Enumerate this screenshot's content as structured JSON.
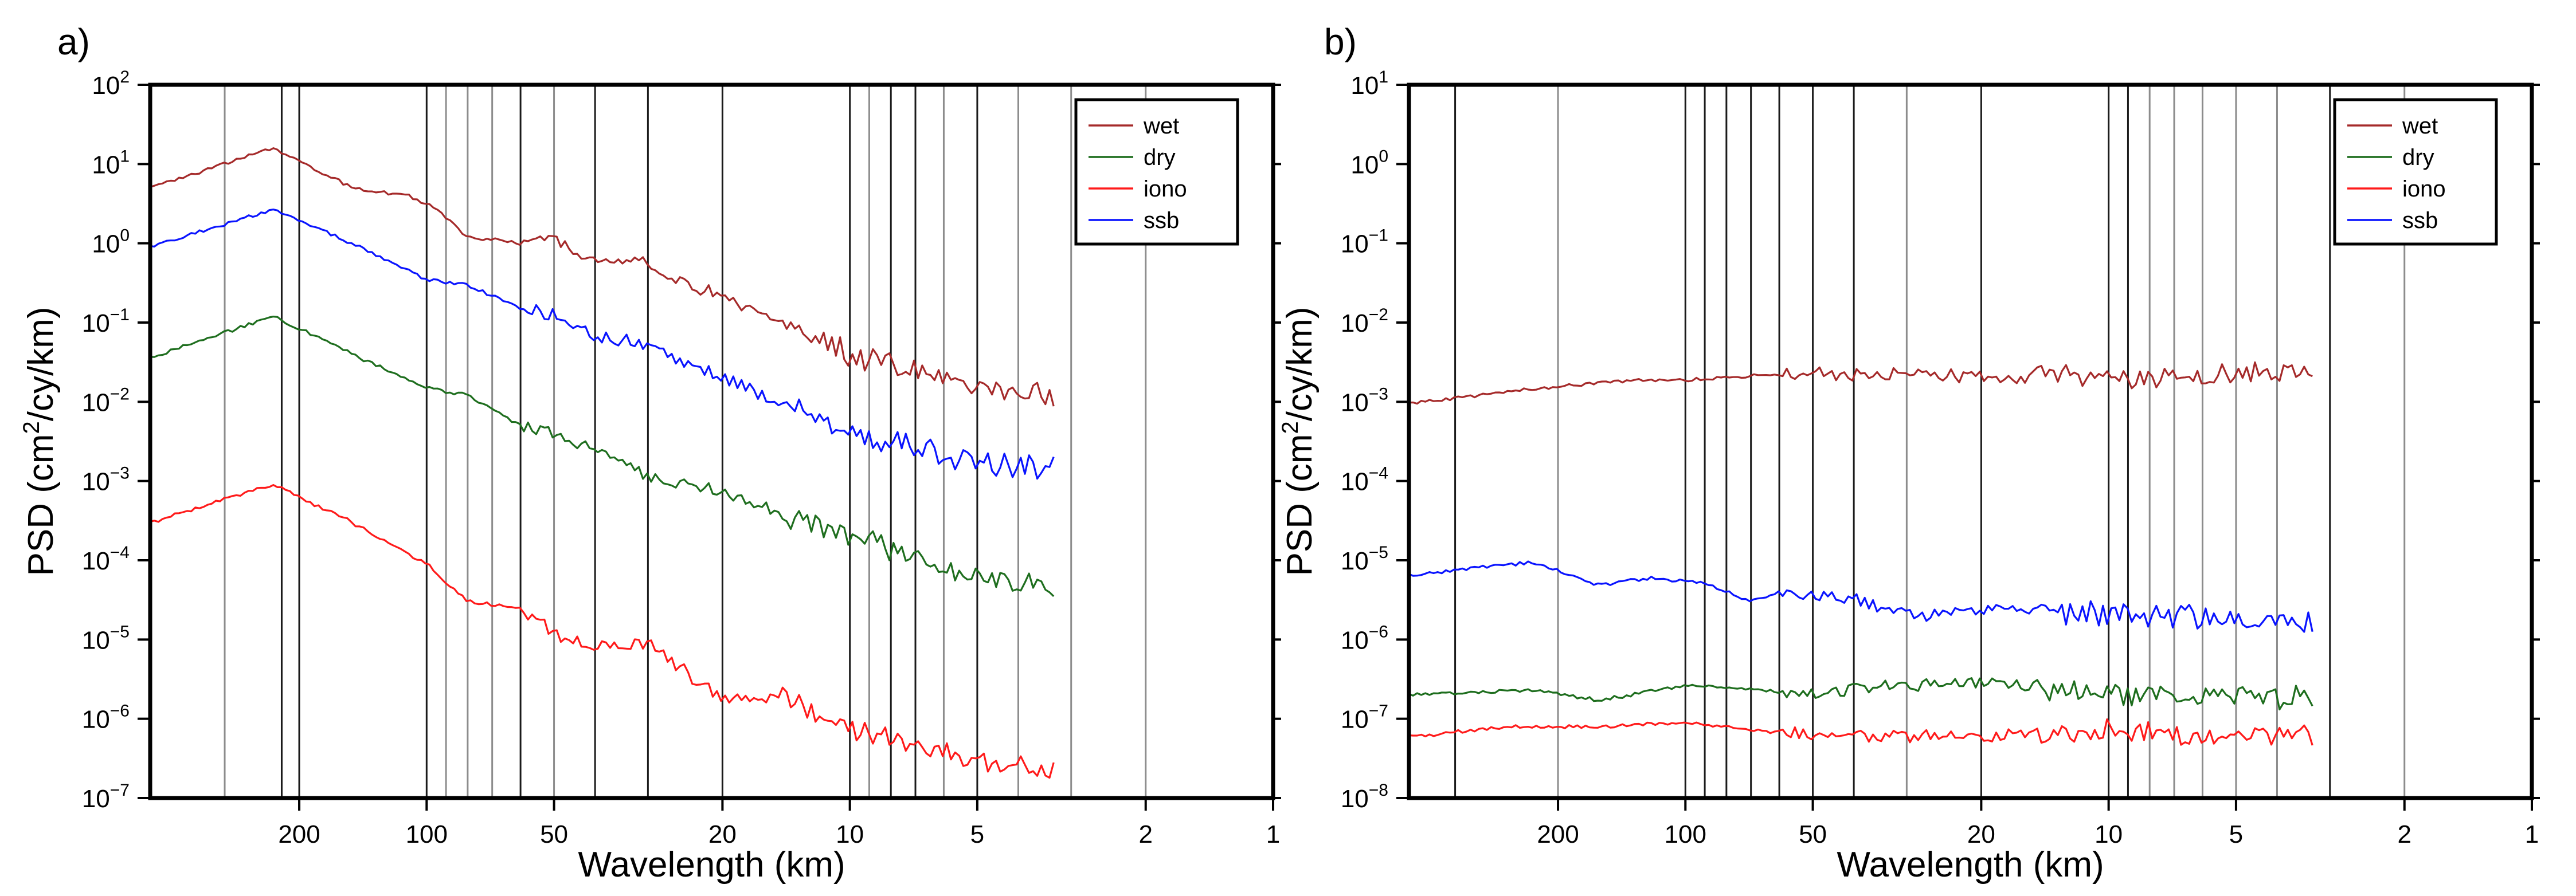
{
  "chart_data": [
    {
      "type": "line",
      "panel_label": "a)",
      "title": "",
      "xlabel": "Wavelength (km)",
      "ylabel": {
        "prefix": "PSD (cm",
        "sup": "2",
        "suffix": "/cy/km)"
      },
      "x_scale": "log-reversed",
      "xlim": [
        450,
        1
      ],
      "ylim": [
        1e-07,
        100
      ],
      "x_ticks": [
        {
          "value": 200,
          "label": "200"
        },
        {
          "value": 100,
          "label": "100"
        },
        {
          "value": 50,
          "label": "50"
        },
        {
          "value": 20,
          "label": "20"
        },
        {
          "value": 10,
          "label": "10"
        },
        {
          "value": 5,
          "label": "5"
        },
        {
          "value": 2,
          "label": "2"
        },
        {
          "value": 1,
          "label": "1"
        }
      ],
      "y_ticks": [
        {
          "value": 100,
          "base": "10",
          "exp": "2"
        },
        {
          "value": 10,
          "base": "10",
          "exp": "1"
        },
        {
          "value": 1,
          "base": "10",
          "exp": "0"
        },
        {
          "value": 0.1,
          "base": "10",
          "exp": "−1"
        },
        {
          "value": 0.01,
          "base": "10",
          "exp": "−2"
        },
        {
          "value": 0.001,
          "base": "10",
          "exp": "−3"
        },
        {
          "value": 0.0001,
          "base": "10",
          "exp": "−4"
        },
        {
          "value": 1e-05,
          "base": "10",
          "exp": "−5"
        },
        {
          "value": 1e-06,
          "base": "10",
          "exp": "−6"
        },
        {
          "value": 1e-07,
          "base": "10",
          "exp": "−7"
        }
      ],
      "vlines": {
        "dark": [
          220,
          200,
          100,
          60,
          40,
          30,
          20,
          10,
          8,
          7,
          5
        ],
        "grey": [
          300,
          90,
          80,
          70,
          50,
          9,
          6,
          4,
          3,
          2
        ]
      },
      "legend": {
        "position": "top-right"
      },
      "series": [
        {
          "name": "wet",
          "color": "#a52a2a",
          "start": 6.0,
          "end": 0.0125,
          "x_start": 450,
          "x_end": 3.3,
          "knots": [
            [
              450,
              5
            ],
            [
              230,
              16
            ],
            [
              150,
              5
            ],
            [
              110,
              4
            ],
            [
              95,
              2.8
            ],
            [
              80,
              1.2
            ],
            [
              60,
              1.0
            ],
            [
              50,
              1.1
            ],
            [
              40,
              0.6
            ],
            [
              30,
              0.55
            ],
            [
              20,
              0.2
            ],
            [
              10,
              0.04
            ],
            [
              5,
              0.015
            ],
            [
              3.3,
              0.012
            ]
          ]
        },
        {
          "name": "dry",
          "color": "#1e6e1e",
          "start": 0.04,
          "end": 5e-05,
          "x_start": 450,
          "x_end": 3.3,
          "knots": [
            [
              450,
              0.036
            ],
            [
              230,
              0.12
            ],
            [
              150,
              0.04
            ],
            [
              100,
              0.015
            ],
            [
              80,
              0.012
            ],
            [
              60,
              0.005
            ],
            [
              50,
              0.004
            ],
            [
              40,
              0.0025
            ],
            [
              30,
              0.0012
            ],
            [
              20,
              0.0007
            ],
            [
              10,
              0.0002
            ],
            [
              5,
              6e-05
            ],
            [
              3.3,
              5e-05
            ]
          ]
        },
        {
          "name": "iono",
          "color": "#ff1a1a",
          "start": 0.0003,
          "end": 2e-07,
          "x_start": 450,
          "x_end": 3.3,
          "knots": [
            [
              450,
              0.0003
            ],
            [
              230,
              0.0009
            ],
            [
              150,
              0.0003
            ],
            [
              100,
              9e-05
            ],
            [
              80,
              3e-05
            ],
            [
              60,
              2.5e-05
            ],
            [
              50,
              1.2e-05
            ],
            [
              40,
              8e-06
            ],
            [
              30,
              9e-06
            ],
            [
              20,
              1.7e-06
            ],
            [
              15,
              2e-06
            ],
            [
              10,
              8e-07
            ],
            [
              5,
              3e-07
            ],
            [
              3.3,
              2e-07
            ]
          ]
        },
        {
          "name": "ssb",
          "color": "#0a14ff",
          "start": 0.9,
          "end": 0.0015,
          "x_start": 450,
          "x_end": 3.3,
          "knots": [
            [
              450,
              0.9
            ],
            [
              230,
              2.7
            ],
            [
              150,
              1.0
            ],
            [
              100,
              0.35
            ],
            [
              80,
              0.3
            ],
            [
              60,
              0.15
            ],
            [
              50,
              0.12
            ],
            [
              40,
              0.07
            ],
            [
              30,
              0.05
            ],
            [
              20,
              0.02
            ],
            [
              10,
              0.004
            ],
            [
              5,
              0.0017
            ],
            [
              3.3,
              0.0015
            ]
          ]
        }
      ]
    },
    {
      "type": "line",
      "panel_label": "b)",
      "title": "",
      "xlabel": "Wavelength (km)",
      "ylabel": {
        "prefix": "PSD (cm",
        "sup": "2",
        "suffix": "/cy/km)"
      },
      "x_scale": "log-reversed",
      "xlim": [
        450,
        1
      ],
      "ylim": [
        1e-08,
        10
      ],
      "x_ticks": [
        {
          "value": 200,
          "label": "200"
        },
        {
          "value": 100,
          "label": "100"
        },
        {
          "value": 50,
          "label": "50"
        },
        {
          "value": 20,
          "label": "20"
        },
        {
          "value": 10,
          "label": "10"
        },
        {
          "value": 5,
          "label": "5"
        },
        {
          "value": 2,
          "label": "2"
        },
        {
          "value": 1,
          "label": "1"
        }
      ],
      "y_ticks": [
        {
          "value": 10,
          "base": "10",
          "exp": "1"
        },
        {
          "value": 1,
          "base": "10",
          "exp": "0"
        },
        {
          "value": 0.1,
          "base": "10",
          "exp": "−1"
        },
        {
          "value": 0.01,
          "base": "10",
          "exp": "−2"
        },
        {
          "value": 0.001,
          "base": "10",
          "exp": "−3"
        },
        {
          "value": 0.0001,
          "base": "10",
          "exp": "−4"
        },
        {
          "value": 1e-05,
          "base": "10",
          "exp": "−5"
        },
        {
          "value": 1e-06,
          "base": "10",
          "exp": "−6"
        },
        {
          "value": 1e-07,
          "base": "10",
          "exp": "−7"
        },
        {
          "value": 1e-08,
          "base": "10",
          "exp": "−8"
        }
      ],
      "vlines": {
        "dark": [
          350,
          100,
          90,
          80,
          70,
          60,
          50,
          40,
          20,
          10,
          9,
          3
        ],
        "grey": [
          200,
          30,
          8,
          7,
          6,
          5,
          4,
          2
        ]
      },
      "legend": {
        "position": "top-right"
      },
      "series": [
        {
          "name": "wet",
          "color": "#a52a2a",
          "start": 0.001,
          "end": 0.0025,
          "x_start": 450,
          "x_end": 3.3,
          "knots": [
            [
              450,
              0.00095
            ],
            [
              250,
              0.0014
            ],
            [
              150,
              0.0018
            ],
            [
              100,
              0.0019
            ],
            [
              50,
              0.0023
            ],
            [
              20,
              0.0021
            ],
            [
              10,
              0.0021
            ],
            [
              5,
              0.0021
            ],
            [
              3.3,
              0.0025
            ]
          ]
        },
        {
          "name": "dry",
          "color": "#1e6e1e",
          "start": 2e-07,
          "end": 2e-07,
          "x_start": 450,
          "x_end": 3.3,
          "knots": [
            [
              450,
              2e-07
            ],
            [
              230,
              2.3e-07
            ],
            [
              160,
              1.7e-07
            ],
            [
              100,
              2.7e-07
            ],
            [
              60,
              2.2e-07
            ],
            [
              50,
              2e-07
            ],
            [
              40,
              2.4e-07
            ],
            [
              20,
              3e-07
            ],
            [
              10,
              2e-07
            ],
            [
              5,
              2e-07
            ],
            [
              3.3,
              1.8e-07
            ]
          ]
        },
        {
          "name": "iono",
          "color": "#ff1a1a",
          "start": 6e-08,
          "end": 6e-08,
          "x_start": 450,
          "x_end": 3.3,
          "knots": [
            [
              450,
              6e-08
            ],
            [
              250,
              8e-08
            ],
            [
              150,
              8e-08
            ],
            [
              100,
              9e-08
            ],
            [
              50,
              6e-08
            ],
            [
              20,
              6e-08
            ],
            [
              10,
              7e-08
            ],
            [
              5,
              6e-08
            ],
            [
              3.3,
              6e-08
            ]
          ]
        },
        {
          "name": "ssb",
          "color": "#0a14ff",
          "start": 6.5e-06,
          "end": 1.7e-06,
          "x_start": 450,
          "x_end": 3.3,
          "knots": [
            [
              450,
              6.5e-06
            ],
            [
              230,
              9.5e-06
            ],
            [
              160,
              4.8e-06
            ],
            [
              120,
              6e-06
            ],
            [
              90,
              5.2e-06
            ],
            [
              70,
              3e-06
            ],
            [
              60,
              4e-06
            ],
            [
              40,
              3.4e-06
            ],
            [
              30,
              2e-06
            ],
            [
              20,
              2.4e-06
            ],
            [
              10,
              2.1e-06
            ],
            [
              5,
              1.9e-06
            ],
            [
              3.3,
              1.7e-06
            ]
          ]
        }
      ]
    }
  ]
}
